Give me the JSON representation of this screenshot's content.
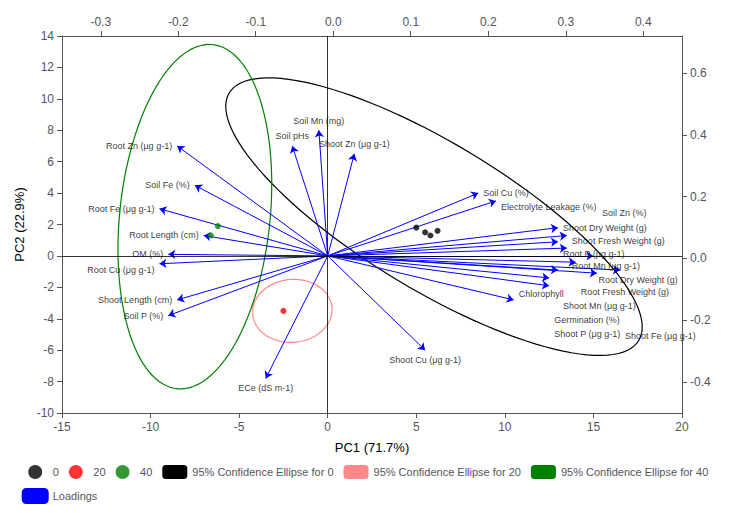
{
  "chart_data": {
    "type": "scatter",
    "xlabel": "PC1 (71.7%)",
    "ylabel": "PC2 (22.9%)",
    "xlim": [
      -15,
      20
    ],
    "ylim": [
      -10,
      14
    ],
    "xticks": [
      -15,
      -10,
      -5,
      0,
      5,
      10,
      15,
      20
    ],
    "yticks": [
      -10,
      -8,
      -6,
      -4,
      -2,
      0,
      2,
      4,
      6,
      8,
      10,
      12,
      14
    ],
    "x2lim": [
      -0.35,
      0.45
    ],
    "x2ticks": [
      -0.3,
      -0.2,
      -0.1,
      {
        "value": 0,
        "label": "0.0"
      },
      0.1,
      0.2,
      0.3,
      0.4
    ],
    "y2lim": [
      -0.5,
      0.72
    ],
    "y2ticks": [
      -0.4,
      -0.2,
      {
        "value": 0,
        "label": "0.0"
      },
      0.2,
      0.4,
      0.6
    ],
    "grid": false,
    "legend": "bottom",
    "series": [
      {
        "name": "0",
        "color": "black",
        "values": [
          [
            5.0,
            1.8
          ],
          [
            5.5,
            1.5
          ],
          [
            6.2,
            1.6
          ],
          [
            5.8,
            1.3
          ]
        ]
      },
      {
        "name": "20",
        "color": "red",
        "values": [
          [
            -2.5,
            -3.5
          ]
        ]
      },
      {
        "name": "40",
        "color": "green",
        "values": [
          [
            -6.2,
            1.9
          ],
          [
            -6.6,
            1.3
          ]
        ]
      }
    ],
    "ellipses": [
      {
        "name": "95% Confidence Ellipse for 0",
        "color": "black",
        "cx": 6.0,
        "cy": 2.5,
        "width": 9.0,
        "height": 28.0,
        "angle": 55
      },
      {
        "name": "95% Confidence Ellipse for 20",
        "color": "#FF8888",
        "cx": -2.0,
        "cy": -3.5,
        "width": 4.5,
        "height": 4.0,
        "angle": 10
      },
      {
        "name": "95% Confidence Ellipse for 40",
        "color": "green",
        "cx": -7.5,
        "cy": 2.5,
        "width": 8.5,
        "height": 22.0,
        "angle": -5
      }
    ],
    "loadings": {
      "name": "Loadings",
      "color": "blue",
      "origin": [
        0,
        0
      ],
      "items": [
        {
          "name": "Root Zn (μg g-1)",
          "x": -8.5,
          "y": 7.0
        },
        {
          "name": "Soil Fe (%)",
          "x": -7.5,
          "y": 4.5
        },
        {
          "name": "Root Fe (μg g-1)",
          "x": -9.5,
          "y": 3.0
        },
        {
          "name": "Root Length (cm)",
          "x": -7.0,
          "y": 1.3
        },
        {
          "name": "OM (%)",
          "x": -9.0,
          "y": 0.1
        },
        {
          "name": "Root Cu (μg g-1)",
          "x": -9.5,
          "y": -0.5
        },
        {
          "name": "Shoot Length (cm)",
          "x": -8.5,
          "y": -2.8
        },
        {
          "name": "Soil P (%)",
          "x": -9.0,
          "y": -3.8
        },
        {
          "name": "ECe (dS m-1)",
          "x": -3.5,
          "y": -7.8
        },
        {
          "name": "Shoot Cu (μg g-1)",
          "x": 5.5,
          "y": -6.0
        },
        {
          "name": "Soil Mn (mg)",
          "x": -0.5,
          "y": 8.0
        },
        {
          "name": "Soil pHs",
          "x": -2.0,
          "y": 7.0
        },
        {
          "name": "Shoot Zn (μg g-1)",
          "x": 1.5,
          "y": 6.5
        },
        {
          "name": "Soil Cu (%)",
          "x": 8.5,
          "y": 4.0
        },
        {
          "name": "Electrolyte Leakage (%)",
          "x": 9.5,
          "y": 3.5
        },
        {
          "name": "Shoot Dry Weight (g)",
          "x": 13.0,
          "y": 1.8
        },
        {
          "name": "Shoot Fresh Weight (g)",
          "x": 13.5,
          "y": 1.3
        },
        {
          "name": "Root P (μg g-1)",
          "x": 13.0,
          "y": 0.9
        },
        {
          "name": "Root Mn (μg g-1)",
          "x": 13.5,
          "y": 0.5
        },
        {
          "name": "Root Dry Weight (g)",
          "x": 15.0,
          "y": 0.0
        },
        {
          "name": "Root Fresh Weight (g)",
          "x": 14.0,
          "y": -0.4
        },
        {
          "name": "Shoot Mn (μg g-1)",
          "x": 13.0,
          "y": -0.9
        },
        {
          "name": "Shoot Fe (μg g-1)",
          "x": 16.5,
          "y": -0.9
        },
        {
          "name": "Germination (%)",
          "x": 12.5,
          "y": -1.4
        },
        {
          "name": "Soil Zn (%)",
          "x": 15.2,
          "y": -1.1
        },
        {
          "name": "Shoot P (μg g-1)",
          "x": 12.5,
          "y": -1.9
        },
        {
          "name": "Chlorophyll",
          "x": 10.5,
          "y": -2.8
        }
      ]
    }
  }
}
